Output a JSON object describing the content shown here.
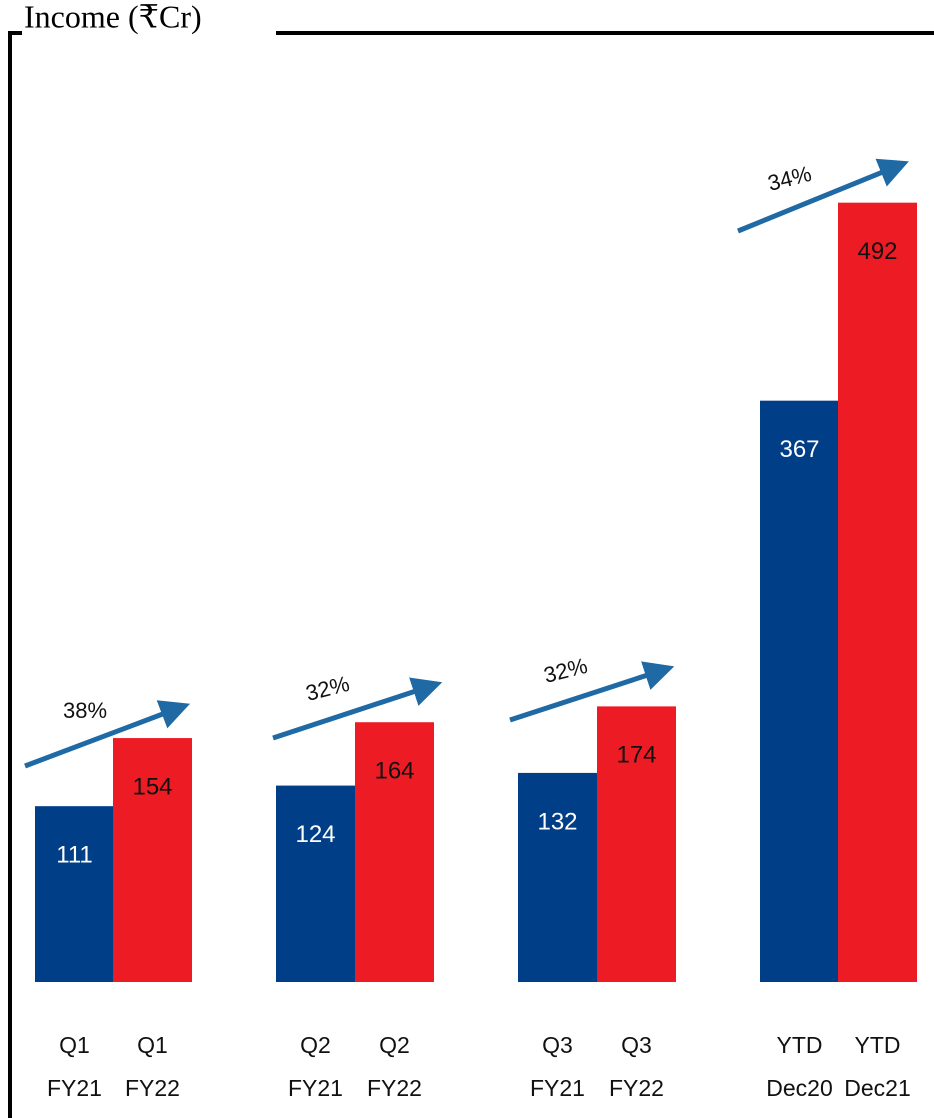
{
  "chart_data": {
    "type": "bar",
    "title": "Income (₹Cr)",
    "categories": [
      [
        "Q1",
        "FY21"
      ],
      [
        "Q1",
        "FY22"
      ],
      [
        "Q2",
        "FY21"
      ],
      [
        "Q2",
        "FY22"
      ],
      [
        "Q3",
        "FY21"
      ],
      [
        "Q3",
        "FY22"
      ],
      [
        "YTD",
        "Dec20"
      ],
      [
        "YTD",
        "Dec21"
      ]
    ],
    "values": [
      111,
      154,
      124,
      164,
      132,
      174,
      367,
      492
    ],
    "colors": [
      "#003f87",
      "#ed1c24",
      "#003f87",
      "#ed1c24",
      "#003f87",
      "#ed1c24",
      "#003f87",
      "#ed1c24"
    ],
    "annotations": [
      "38%",
      "32%",
      "32%",
      "34%"
    ]
  }
}
